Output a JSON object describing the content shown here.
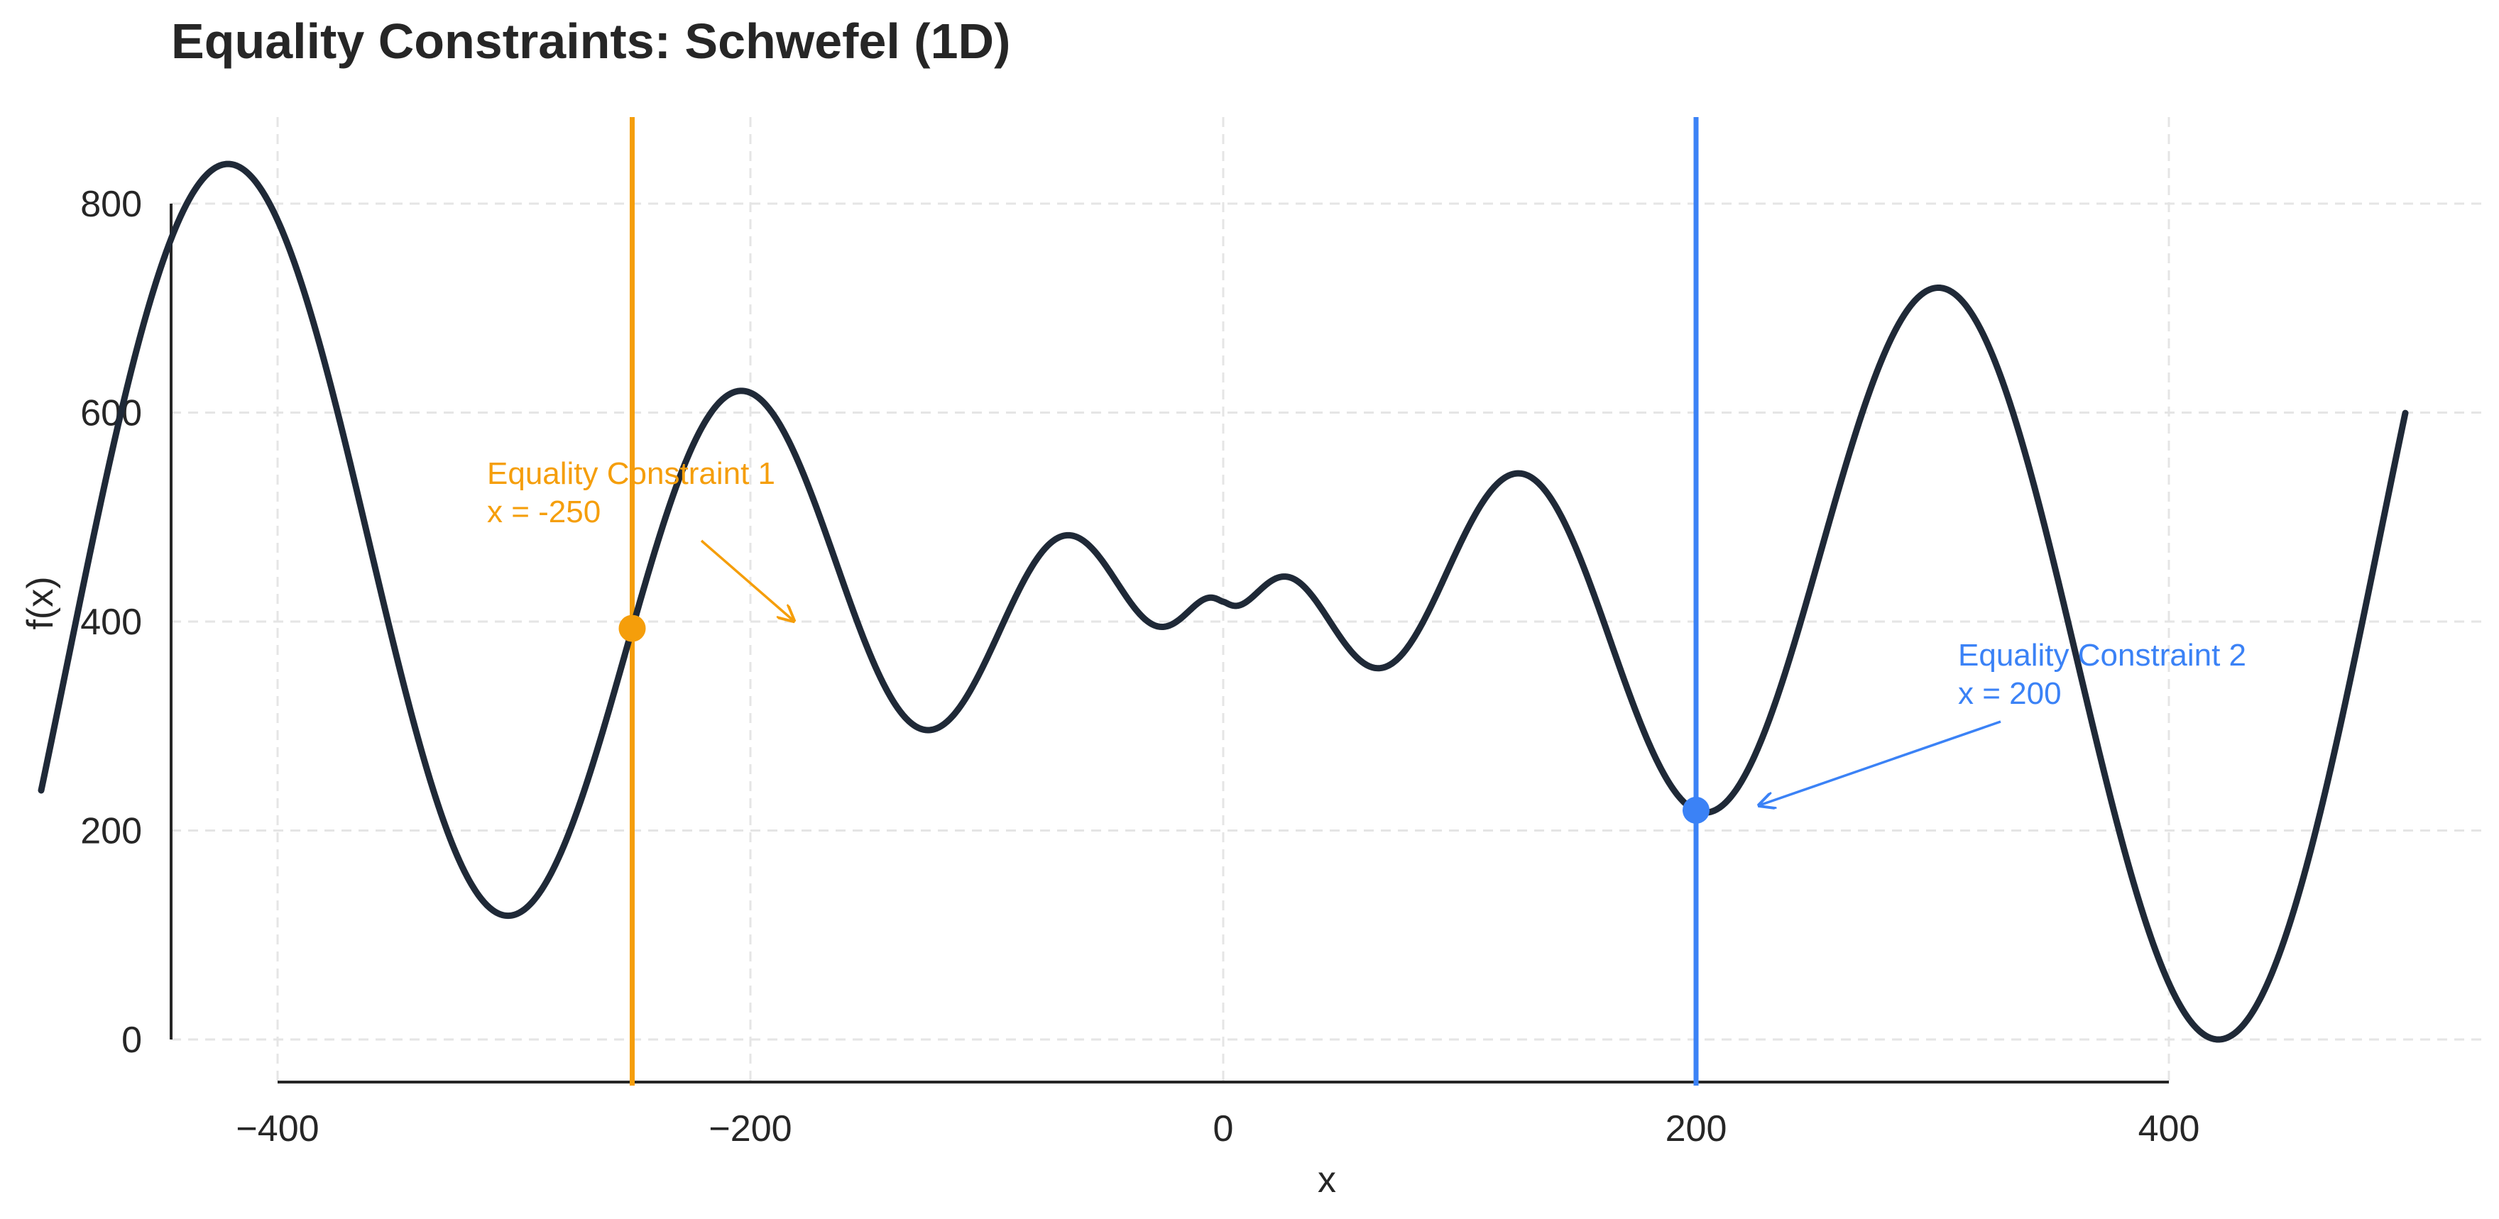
{
  "chart_data": {
    "type": "line",
    "title": "Equality Constraints: Schwefel (1D)",
    "xlabel": "x",
    "ylabel": "f(x)",
    "xlim": [
      -500,
      500
    ],
    "ylim": [
      0,
      800
    ],
    "xticks": [
      -400,
      -200,
      0,
      200,
      400
    ],
    "xtick_labels": [
      "−400",
      "−200",
      "0",
      "200",
      "400"
    ],
    "yticks": [
      0,
      200,
      400,
      600,
      800
    ],
    "ytick_labels": [
      "0",
      "200",
      "400",
      "600",
      "800"
    ],
    "grid": true,
    "function": "418.9829 - x*sin(sqrt(|x|))",
    "series": [
      {
        "x_range": [
          -500,
          500
        ],
        "color": "#1f2937"
      }
    ],
    "constraints": [
      {
        "label": "Equality Constraint 1",
        "value_text": "x = -250",
        "x": -250,
        "y": 393.5,
        "color": "#f59e0b"
      },
      {
        "label": "Equality Constraint 2",
        "value_text": "x = 200",
        "x": 200,
        "y": 219.4,
        "color": "#3b82f6"
      }
    ]
  }
}
